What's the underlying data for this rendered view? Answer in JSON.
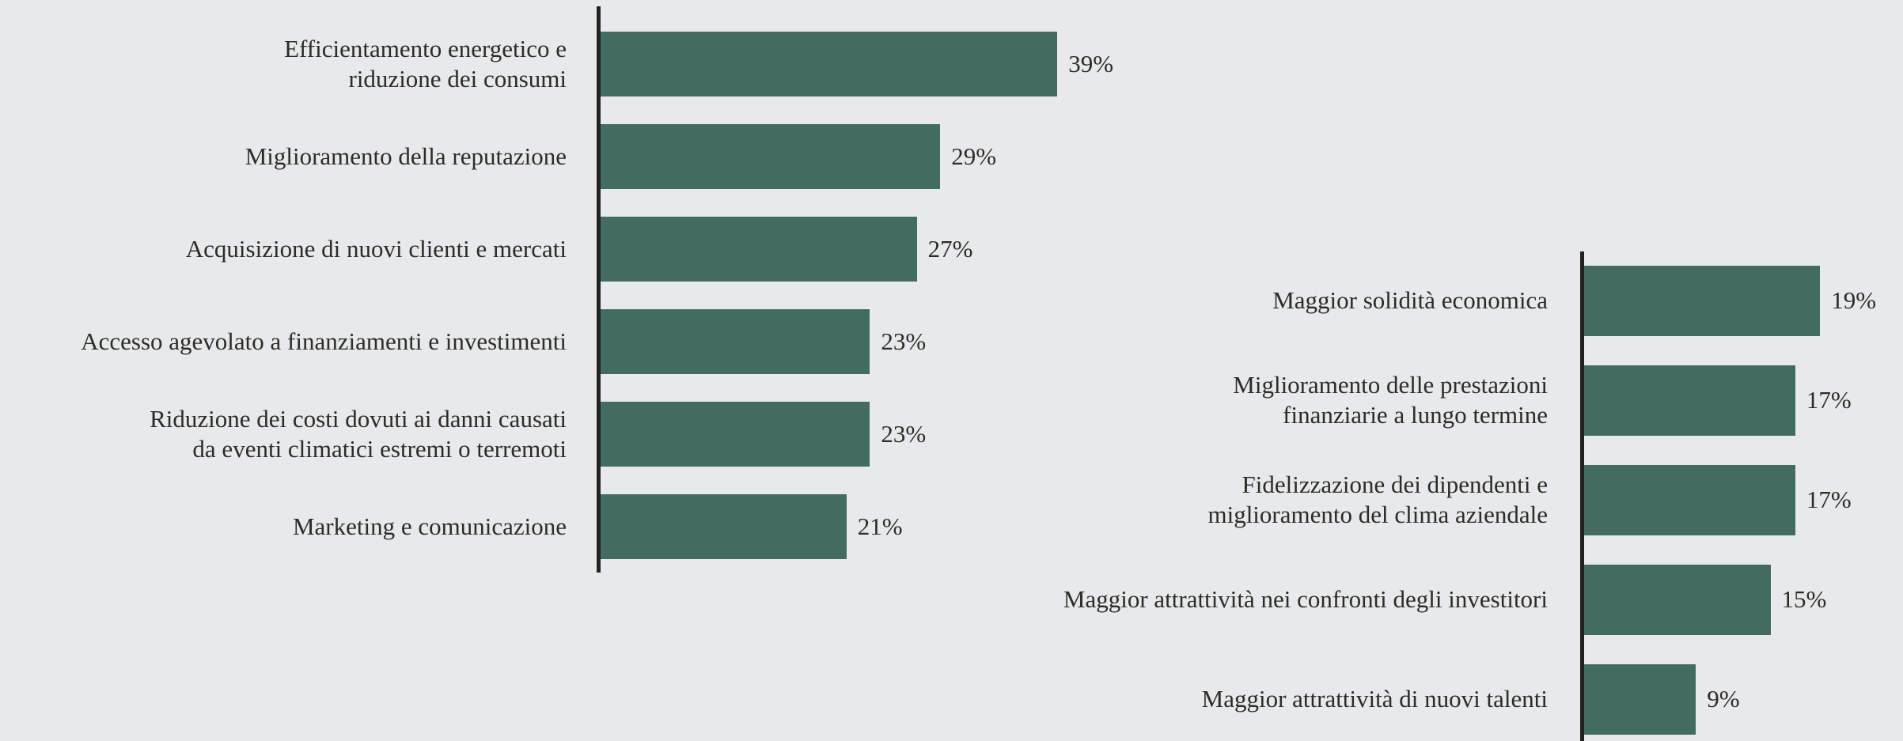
{
  "chart_data": [
    {
      "type": "bar",
      "orientation": "horizontal",
      "color": "#426c62",
      "categories": [
        "Efficientamento energetico e\nriduzione dei consumi",
        "Miglioramento della reputazione",
        "Acquisizione di nuovi clienti e mercati",
        "Accesso agevolato a finanziamenti e investimenti",
        "Riduzione dei costi dovuti ai danni causati\nda eventi climatici estremi o terremoti",
        "Marketing e comunicazione"
      ],
      "values": [
        39,
        29,
        27,
        23,
        23,
        21
      ],
      "value_labels": [
        "39%",
        "29%",
        "27%",
        "23%",
        "23%",
        "21%"
      ]
    },
    {
      "type": "bar",
      "orientation": "horizontal",
      "color": "#426c62",
      "categories": [
        "Maggior solidità economica",
        "Miglioramento delle prestazioni\nfinanziarie a lungo termine",
        "Fidelizzazione dei dipendenti e\nmiglioramento del clima aziendale",
        "Maggior attrattività nei confronti degli investitori",
        "Maggior attrattività di nuovi talenti"
      ],
      "values": [
        19,
        17,
        17,
        15,
        9
      ],
      "value_labels": [
        "19%",
        "17%",
        "17%",
        "15%",
        "9%"
      ]
    }
  ]
}
